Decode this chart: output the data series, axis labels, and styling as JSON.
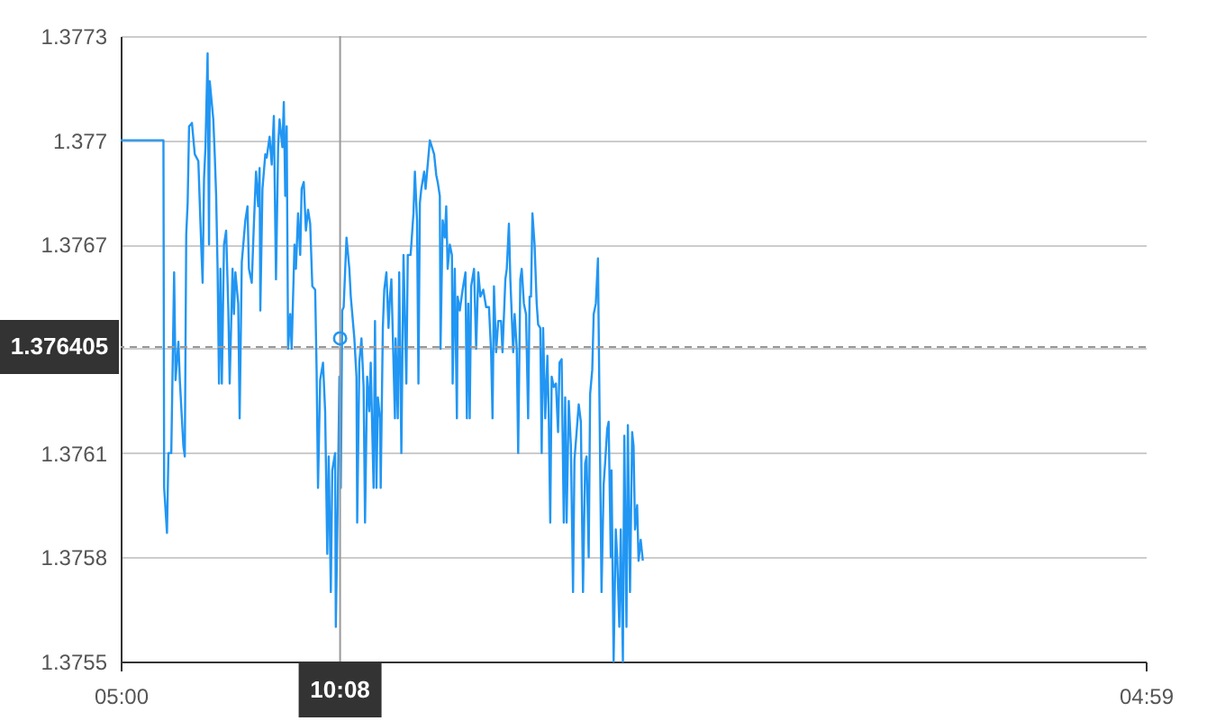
{
  "chart_data": {
    "type": "line",
    "series": [
      {
        "color": "#2196f3",
        "x": [
          "2000-01-01T05:00",
          "2000-01-01T06:00",
          "2000-01-01T06:01",
          "2000-01-01T06:05",
          "2000-01-01T06:07",
          "2000-01-01T06:11",
          "2000-01-01T06:15",
          "2000-01-01T06:17",
          "2000-01-01T06:21",
          "2000-01-01T06:23",
          "2000-01-01T06:28",
          "2000-01-01T06:30",
          "2000-01-01T06:32",
          "2000-01-01T06:34",
          "2000-01-01T06:36",
          "2000-01-01T06:40",
          "2000-01-01T06:44",
          "2000-01-01T06:49",
          "2000-01-01T06:53",
          "2000-01-01T06:55",
          "2000-01-01T06:57",
          "2000-01-01T06:59",
          "2000-01-01T07:02",
          "2000-01-01T07:04",
          "2000-01-01T07:05",
          "2000-01-01T07:10",
          "2000-01-01T07:12",
          "2000-01-01T07:14",
          "2000-01-01T07:16",
          "2000-01-01T07:18",
          "2000-01-01T07:20",
          "2000-01-01T07:22",
          "2000-01-01T07:25",
          "2000-01-01T07:28",
          "2000-01-01T07:31",
          "2000-01-01T07:33",
          "2000-01-01T07:37",
          "2000-01-01T07:39",
          "2000-01-01T07:41",
          "2000-01-01T07:45",
          "2000-01-01T07:47",
          "2000-01-01T07:50",
          "2000-01-01T07:55",
          "2000-01-01T07:58",
          "2000-01-01T08:00",
          "2000-01-01T08:04",
          "2000-01-01T08:07",
          "2000-01-01T08:10",
          "2000-01-01T08:13",
          "2000-01-01T08:15",
          "2000-01-01T08:16",
          "2000-01-01T08:19",
          "2000-01-01T08:23",
          "2000-01-01T08:25",
          "2000-01-01T08:29",
          "2000-01-01T08:32",
          "2000-01-01T08:35",
          "2000-01-01T08:38",
          "2000-01-01T08:41",
          "2000-01-01T08:43",
          "2000-01-01T08:47",
          "2000-01-01T08:49",
          "2000-01-01T08:51",
          "2000-01-01T08:53",
          "2000-01-01T08:55",
          "2000-01-01T08:58",
          "2000-01-01T09:00",
          "2000-01-01T09:04",
          "2000-01-01T09:06",
          "2000-01-01T09:09",
          "2000-01-01T09:12",
          "2000-01-01T09:14",
          "2000-01-01T09:17",
          "2000-01-01T09:20",
          "2000-01-01T09:23",
          "2000-01-01T09:26",
          "2000-01-01T09:29",
          "2000-01-01T09:33",
          "2000-01-01T09:35",
          "2000-01-01T09:37",
          "2000-01-01T09:40",
          "2000-01-01T09:44",
          "2000-01-01T09:47",
          "2000-01-01T09:50",
          "2000-01-01T09:52",
          "2000-01-01T09:55",
          "2000-01-01T09:57",
          "2000-01-01T10:01",
          "2000-01-01T10:02",
          "2000-01-01T10:05",
          "2000-01-01T10:07",
          "2000-01-01T10:09",
          "2000-01-01T10:11",
          "2000-01-01T10:13",
          "2000-01-01T10:15",
          "2000-01-01T10:17",
          "2000-01-01T10:21",
          "2000-01-01T10:23",
          "2000-01-01T10:28",
          "2000-01-01T10:31",
          "2000-01-01T10:32",
          "2000-01-01T10:35",
          "2000-01-01T10:38",
          "2000-01-01T10:41",
          "2000-01-01T10:43",
          "2000-01-01T10:46",
          "2000-01-01T10:49",
          "2000-01-01T10:51",
          "2000-01-01T10:55",
          "2000-01-01T10:57",
          "2000-01-01T10:59",
          "2000-01-01T11:01",
          "2000-01-01T11:04",
          "2000-01-01T11:05",
          "2000-01-01T11:08",
          "2000-01-01T11:10",
          "2000-01-01T11:13",
          "2000-01-01T11:16",
          "2000-01-01T11:18",
          "2000-01-01T11:20",
          "2000-01-01T11:25",
          "2000-01-01T11:26",
          "2000-01-01T11:29",
          "2000-01-01T11:31",
          "2000-01-01T11:34",
          "2000-01-01T11:37",
          "2000-01-01T11:41",
          "2000-01-01T11:43",
          "2000-01-01T11:47",
          "2000-01-01T11:51",
          "2000-01-01T11:53",
          "2000-01-01T11:56",
          "2000-01-01T11:58",
          "2000-01-01T12:00",
          "2000-01-01T12:02",
          "2000-01-01T12:06",
          "2000-01-01T12:08",
          "2000-01-01T12:11",
          "2000-01-01T12:14",
          "2000-01-01T12:17",
          "2000-01-01T12:20",
          "2000-01-01T12:23",
          "2000-01-01T12:25",
          "2000-01-01T12:28",
          "2000-01-01T12:29",
          "2000-01-01T12:32",
          "2000-01-01T12:35",
          "2000-01-01T12:37",
          "2000-01-01T12:39",
          "2000-01-01T12:42",
          "2000-01-01T12:45",
          "2000-01-01T12:46",
          "2000-01-01T12:49",
          "2000-01-01T12:52",
          "2000-01-01T12:53",
          "2000-01-01T12:56",
          "2000-01-01T13:00",
          "2000-01-01T13:04",
          "2000-01-01T13:06",
          "2000-01-01T13:08",
          "2000-01-01T13:10",
          "2000-01-01T13:12",
          "2000-01-01T13:16",
          "2000-01-01T13:19",
          "2000-01-01T13:22",
          "2000-01-01T13:25",
          "2000-01-01T13:29",
          "2000-01-01T13:33",
          "2000-01-01T13:37",
          "2000-01-01T13:40",
          "2000-01-01T13:42",
          "2000-01-01T13:44",
          "2000-01-01T13:47",
          "2000-01-01T13:50",
          "2000-01-01T13:54",
          "2000-01-01T13:56",
          "2000-01-01T14:00",
          "2000-01-01T14:02",
          "2000-01-01T14:05",
          "2000-01-01T14:07",
          "2000-01-01T14:11",
          "2000-01-01T14:13",
          "2000-01-01T14:16",
          "2000-01-01T14:18",
          "2000-01-01T14:21",
          "2000-01-01T14:23",
          "2000-01-01T14:26",
          "2000-01-01T14:29",
          "2000-01-01T14:32",
          "2000-01-01T14:34",
          "2000-01-01T14:36",
          "2000-01-01T14:38",
          "2000-01-01T14:41",
          "2000-01-01T14:44",
          "2000-01-01T14:46",
          "2000-01-01T14:49",
          "2000-01-01T14:51",
          "2000-01-01T14:53",
          "2000-01-01T14:56",
          "2000-01-01T14:59",
          "2000-01-01T15:01",
          "2000-01-01T15:03",
          "2000-01-01T15:05",
          "2000-01-01T15:08",
          "2000-01-01T15:11",
          "2000-01-01T15:14",
          "2000-01-01T15:16",
          "2000-01-01T15:19",
          "2000-01-01T15:22",
          "2000-01-01T15:24",
          "2000-01-01T15:26",
          "2000-01-01T15:29",
          "2000-01-01T15:32",
          "2000-01-01T15:35",
          "2000-01-01T15:37",
          "2000-01-01T15:40",
          "2000-01-01T15:43",
          "2000-01-01T15:46",
          "2000-01-01T15:49",
          "2000-01-01T15:52",
          "2000-01-01T15:54",
          "2000-01-01T15:57",
          "2000-01-01T15:59",
          "2000-01-01T16:02",
          "2000-01-01T16:04",
          "2000-01-01T16:07",
          "2000-01-01T16:10",
          "2000-01-01T16:11",
          "2000-01-01T16:13",
          "2000-01-01T16:15",
          "2000-01-01T16:18",
          "2000-01-01T16:20",
          "2000-01-01T16:23",
          "2000-01-01T16:25",
          "2000-01-01T16:28",
          "2000-01-01T16:29",
          "2000-01-01T16:32",
          "2000-01-01T16:35",
          "2000-01-01T16:37",
          "2000-01-01T16:40",
          "2000-01-01T16:42",
          "2000-01-01T16:45",
          "2000-01-01T16:47",
          "2000-01-01T16:50",
          "2000-01-01T16:52",
          "2000-01-01T16:55",
          "2000-01-01T16:58",
          "2000-01-01T17:00",
          "2000-01-01T17:02",
          "2000-01-01T17:05",
          "2000-01-01T17:07",
          "2000-01-01T17:10",
          "2000-01-01T17:13"
        ],
        "values": [
          1.377,
          1.377,
          1.376,
          1.37587,
          1.3761,
          1.3761,
          1.37662,
          1.37631,
          1.37642,
          1.37631,
          1.37612,
          1.37609,
          1.37673,
          1.37682,
          1.37704,
          1.37705,
          1.37696,
          1.37694,
          1.3767,
          1.37659,
          1.37689,
          1.37698,
          1.37725,
          1.3767,
          1.37717,
          1.37706,
          1.37696,
          1.37684,
          1.37663,
          1.3763,
          1.37663,
          1.3763,
          1.3767,
          1.37674,
          1.37652,
          1.3763,
          1.37663,
          1.3765,
          1.37662,
          1.37653,
          1.3762,
          1.37665,
          1.37677,
          1.37681,
          1.37663,
          1.37659,
          1.37676,
          1.37691,
          1.37681,
          1.37692,
          1.37651,
          1.37686,
          1.37696,
          1.37695,
          1.37701,
          1.37693,
          1.37707,
          1.3766,
          1.37698,
          1.37706,
          1.37698,
          1.37711,
          1.37684,
          1.37704,
          1.3764,
          1.3765,
          1.3764,
          1.3767,
          1.37663,
          1.37679,
          1.37667,
          1.37686,
          1.37688,
          1.37674,
          1.3768,
          1.37676,
          1.37658,
          1.37657,
          1.37634,
          1.376,
          1.37631,
          1.37636,
          1.37622,
          1.37581,
          1.37609,
          1.3757,
          1.37605,
          1.3761,
          1.3756,
          1.376,
          1.37632,
          1.376,
          1.37651,
          1.37652,
          1.37662,
          1.37672,
          1.37663,
          1.37655,
          1.37643,
          1.37632,
          1.3759,
          1.37636,
          1.37643,
          1.37629,
          1.3759,
          1.37632,
          1.37622,
          1.37636,
          1.376,
          1.37648,
          1.376,
          1.37626,
          1.3762,
          1.376,
          1.37646,
          1.37657,
          1.37662,
          1.37646,
          1.37655,
          1.3766,
          1.3762,
          1.37643,
          1.3762,
          1.37662,
          1.3761,
          1.37667,
          1.3763,
          1.37667,
          1.37667,
          1.37679,
          1.37691,
          1.37677,
          1.3763,
          1.37682,
          1.37686,
          1.37691,
          1.37686,
          1.37693,
          1.377,
          1.37698,
          1.37696,
          1.3769,
          1.37688,
          1.37684,
          1.3764,
          1.37677,
          1.37672,
          1.37681,
          1.37663,
          1.3767,
          1.37667,
          1.3763,
          1.37663,
          1.3762,
          1.37655,
          1.37651,
          1.37657,
          1.37662,
          1.3762,
          1.37653,
          1.3762,
          1.37658,
          1.37663,
          1.3764,
          1.37662,
          1.37655,
          1.37657,
          1.37652,
          1.37652,
          1.37639,
          1.3762,
          1.37658,
          1.37639,
          1.37648,
          1.37648,
          1.37639,
          1.3766,
          1.37663,
          1.37676,
          1.3766,
          1.37639,
          1.3765,
          1.3764,
          1.3761,
          1.3766,
          1.37663,
          1.37653,
          1.3765,
          1.3762,
          1.37655,
          1.37655,
          1.37679,
          1.3767,
          1.37653,
          1.37647,
          1.37646,
          1.3761,
          1.37646,
          1.3762,
          1.37638,
          1.3762,
          1.3759,
          1.37632,
          1.37629,
          1.3763,
          1.37616,
          1.37636,
          1.37637,
          1.3759,
          1.37626,
          1.3759,
          1.37625,
          1.37612,
          1.3757,
          1.37608,
          1.37616,
          1.37624,
          1.37619,
          1.3757,
          1.37607,
          1.37609,
          1.3758,
          1.37627,
          1.37634,
          1.3765,
          1.37653,
          1.37666,
          1.37646,
          1.37608,
          1.3757,
          1.37601,
          1.37607,
          1.37617,
          1.37619,
          1.3758,
          1.37605,
          1.3755,
          1.37588,
          1.3758,
          1.3756,
          1.37588,
          1.3755,
          1.37615,
          1.3756,
          1.37618,
          1.3757,
          1.37616,
          1.37612,
          1.37588,
          1.37595,
          1.37579,
          1.37585,
          1.37579
        ]
      },
      {
        "type": "scatter",
        "color": "#2196f3",
        "marker": "circle",
        "x": [
          "2000-01-01T10:08"
        ],
        "values": [
          1.37643
        ]
      }
    ],
    "xlim": [
      "2000-01-01T05:00",
      "2000-01-02T04:59"
    ],
    "xticks": [
      {
        "value": "2000-01-01T05:00",
        "label": "05:00"
      },
      {
        "value": "2000-01-02T04:59",
        "label": "04:59"
      }
    ],
    "ylim": [
      1.3755,
      1.3773
    ],
    "yticks": [
      1.3755,
      1.3758,
      1.3761,
      {
        "value": 1.3764,
        "label": null
      },
      1.3767,
      1.377,
      1.3773
    ],
    "grid": "y",
    "ref_lines": [
      {
        "axis": "x",
        "value": "2000-01-01T10:08",
        "label": "10:08",
        "color": "#999999",
        "line_style": "solid"
      },
      {
        "axis": "y",
        "value": 1.376405,
        "label": "1.376405",
        "color": "#999999",
        "line_style": "dashed"
      }
    ]
  }
}
